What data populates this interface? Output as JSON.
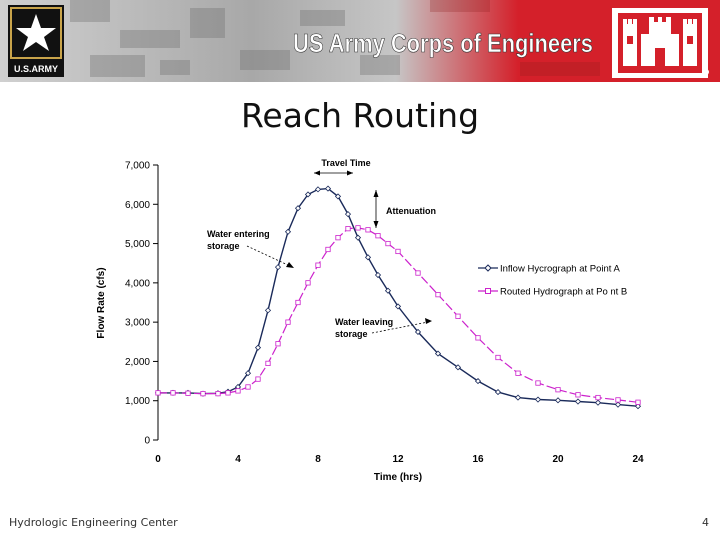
{
  "header": {
    "army_logo_text": "U.S.ARMY",
    "banner_title": "US Army Corps of Engineers",
    "colors": {
      "gray": "#b3b3b3",
      "red": "#d4202a",
      "dark_red": "#9b1116",
      "black": "#111111",
      "gold": "#c9a44a"
    }
  },
  "slide": {
    "title": "Reach Routing",
    "footer_left": "Hydrologic Engineering Center",
    "page_number": "4"
  },
  "chart_data": {
    "type": "line",
    "title": "",
    "xlabel": "Time (hrs)",
    "ylabel": "Flow Rate (cfs)",
    "xlim": [
      0,
      24
    ],
    "ylim": [
      0,
      7000
    ],
    "x_ticks": [
      "0",
      "4",
      "8",
      "12",
      "16",
      "20",
      "24"
    ],
    "y_ticks": [
      "0",
      "1,000",
      "2,000",
      "3,000",
      "4,000",
      "5,000",
      "6,000",
      "7,000"
    ],
    "x_tick_values": [
      0,
      4,
      8,
      12,
      16,
      20,
      24
    ],
    "y_tick_values": [
      0,
      1000,
      2000,
      3000,
      4000,
      5000,
      6000,
      7000
    ],
    "grid": false,
    "legend_position": "right",
    "series": [
      {
        "name": "Inflow Hycrograph at Point A",
        "color": "#1a2a5a",
        "marker": "diamond",
        "x": [
          0,
          0.75,
          1.5,
          2.25,
          3,
          3.5,
          4,
          4.5,
          5,
          5.5,
          6,
          6.5,
          7,
          7.5,
          8,
          8.5,
          9,
          9.5,
          10,
          10.5,
          11,
          11.5,
          12,
          13,
          14,
          15,
          16,
          17,
          18,
          19,
          20,
          21,
          22,
          23,
          24
        ],
        "y": [
          1200,
          1200,
          1200,
          1180,
          1190,
          1230,
          1350,
          1700,
          2350,
          3300,
          4400,
          5300,
          5900,
          6250,
          6380,
          6400,
          6200,
          5750,
          5150,
          4650,
          4200,
          3800,
          3400,
          2750,
          2200,
          1850,
          1500,
          1220,
          1080,
          1030,
          1010,
          980,
          950,
          900,
          860
        ]
      },
      {
        "name": "Routed Hydrograph at Po nt B",
        "color": "#cc22cc",
        "marker": "square",
        "x": [
          0,
          0.75,
          1.5,
          2.25,
          3,
          3.5,
          4,
          4.5,
          5,
          5.5,
          6,
          6.5,
          7,
          7.5,
          8,
          8.5,
          9,
          9.5,
          10,
          10.5,
          11,
          11.5,
          12,
          13,
          14,
          15,
          16,
          17,
          18,
          19,
          20,
          21,
          22,
          23,
          24
        ],
        "y": [
          1200,
          1200,
          1190,
          1180,
          1180,
          1200,
          1250,
          1350,
          1550,
          1950,
          2450,
          3000,
          3500,
          4000,
          4450,
          4850,
          5150,
          5380,
          5400,
          5350,
          5200,
          5000,
          4800,
          4250,
          3700,
          3150,
          2600,
          2100,
          1700,
          1450,
          1280,
          1150,
          1080,
          1020,
          960
        ]
      }
    ],
    "annotations": [
      "Travel Time",
      "Attenuation",
      "Water entering\nstorage",
      "Water leaving\nstorage"
    ]
  }
}
